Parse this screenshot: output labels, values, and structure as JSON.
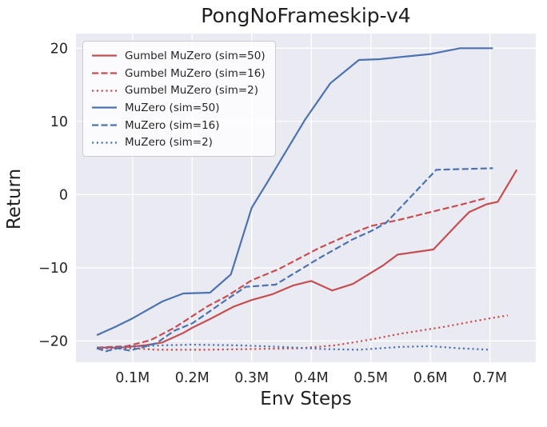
{
  "figure": {
    "title": "PongNoFrameskip-v4",
    "xlabel": "Env Steps",
    "ylabel": "Return"
  },
  "colors": {
    "red": "#c44e52",
    "blue": "#4c72b0",
    "plot_background": "#eaeaf2",
    "gridline": "#ffffff",
    "text": "#262626"
  },
  "chart_data": {
    "type": "line",
    "title": "PongNoFrameskip-v4",
    "xlabel": "Env Steps",
    "ylabel": "Return",
    "x_unit": "millions of env steps",
    "xlim": [
      0.005,
      0.777
    ],
    "ylim": [
      -22.9,
      22.0
    ],
    "grid": true,
    "legend_position": "upper left",
    "x_ticks": [
      {
        "value": 0.1,
        "label": "0.1M"
      },
      {
        "value": 0.2,
        "label": "0.2M"
      },
      {
        "value": 0.3,
        "label": "0.3M"
      },
      {
        "value": 0.4,
        "label": "0.4M"
      },
      {
        "value": 0.5,
        "label": "0.5M"
      },
      {
        "value": 0.6,
        "label": "0.6M"
      },
      {
        "value": 0.7,
        "label": "0.7M"
      }
    ],
    "y_ticks": [
      {
        "value": 20,
        "label": "20"
      },
      {
        "value": 10,
        "label": "10"
      },
      {
        "value": 0,
        "label": "0"
      },
      {
        "value": -10,
        "label": "−10"
      },
      {
        "value": -20,
        "label": "−20"
      }
    ],
    "series": [
      {
        "id": "gumbel-muzero-sim50",
        "name": "Gumbel MuZero (sim=50)",
        "color": "#c44e52",
        "style": "solid",
        "points": [
          [
            0.04,
            -20.9
          ],
          [
            0.08,
            -20.9
          ],
          [
            0.12,
            -20.6
          ],
          [
            0.15,
            -20.2
          ],
          [
            0.185,
            -18.9
          ],
          [
            0.2,
            -18.2
          ],
          [
            0.23,
            -17.0
          ],
          [
            0.27,
            -15.3
          ],
          [
            0.3,
            -14.4
          ],
          [
            0.335,
            -13.6
          ],
          [
            0.37,
            -12.4
          ],
          [
            0.4,
            -11.8
          ],
          [
            0.435,
            -13.1
          ],
          [
            0.47,
            -12.2
          ],
          [
            0.52,
            -9.7
          ],
          [
            0.545,
            -8.2
          ],
          [
            0.605,
            -7.5
          ],
          [
            0.648,
            -3.8
          ],
          [
            0.665,
            -2.4
          ],
          [
            0.695,
            -1.3
          ],
          [
            0.713,
            -1.0
          ],
          [
            0.745,
            3.4
          ]
        ]
      },
      {
        "id": "gumbel-muzero-sim16",
        "name": "Gumbel MuZero (sim=16)",
        "color": "#c44e52",
        "style": "dashed",
        "points": [
          [
            0.04,
            -20.9
          ],
          [
            0.09,
            -20.7
          ],
          [
            0.13,
            -19.9
          ],
          [
            0.17,
            -18.2
          ],
          [
            0.225,
            -15.3
          ],
          [
            0.26,
            -13.8
          ],
          [
            0.3,
            -11.7
          ],
          [
            0.345,
            -10.2
          ],
          [
            0.413,
            -7.3
          ],
          [
            0.46,
            -5.6
          ],
          [
            0.5,
            -4.3
          ],
          [
            0.55,
            -3.4
          ],
          [
            0.6,
            -2.4
          ],
          [
            0.65,
            -1.4
          ],
          [
            0.692,
            -0.5
          ]
        ]
      },
      {
        "id": "gumbel-muzero-sim2",
        "name": "Gumbel MuZero (sim=2)",
        "color": "#c44e52",
        "style": "dotted",
        "points": [
          [
            0.04,
            -21.0
          ],
          [
            0.1,
            -21.0
          ],
          [
            0.14,
            -21.2
          ],
          [
            0.22,
            -21.2
          ],
          [
            0.3,
            -21.1
          ],
          [
            0.38,
            -21.0
          ],
          [
            0.44,
            -20.6
          ],
          [
            0.5,
            -19.8
          ],
          [
            0.55,
            -19.0
          ],
          [
            0.62,
            -18.1
          ],
          [
            0.66,
            -17.5
          ],
          [
            0.7,
            -16.9
          ],
          [
            0.73,
            -16.5
          ]
        ]
      },
      {
        "id": "muzero-sim50",
        "name": "MuZero (sim=50)",
        "color": "#4c72b0",
        "style": "solid",
        "points": [
          [
            0.04,
            -19.2
          ],
          [
            0.07,
            -18.1
          ],
          [
            0.1,
            -16.9
          ],
          [
            0.15,
            -14.6
          ],
          [
            0.185,
            -13.5
          ],
          [
            0.23,
            -13.4
          ],
          [
            0.265,
            -10.9
          ],
          [
            0.3,
            -1.8
          ],
          [
            0.325,
            1.5
          ],
          [
            0.39,
            10.3
          ],
          [
            0.432,
            15.2
          ],
          [
            0.48,
            18.4
          ],
          [
            0.515,
            18.5
          ],
          [
            0.55,
            18.8
          ],
          [
            0.6,
            19.2
          ],
          [
            0.65,
            20.0
          ],
          [
            0.705,
            20.0
          ]
        ]
      },
      {
        "id": "muzero-sim16",
        "name": "MuZero (sim=16)",
        "color": "#4c72b0",
        "style": "dashed",
        "points": [
          [
            0.04,
            -21.0
          ],
          [
            0.055,
            -21.4
          ],
          [
            0.075,
            -21.0
          ],
          [
            0.095,
            -21.3
          ],
          [
            0.115,
            -20.9
          ],
          [
            0.14,
            -20.3
          ],
          [
            0.17,
            -18.6
          ],
          [
            0.2,
            -17.6
          ],
          [
            0.225,
            -16.2
          ],
          [
            0.255,
            -14.5
          ],
          [
            0.29,
            -12.6
          ],
          [
            0.34,
            -12.3
          ],
          [
            0.413,
            -8.7
          ],
          [
            0.47,
            -6.1
          ],
          [
            0.5,
            -5.0
          ],
          [
            0.525,
            -3.9
          ],
          [
            0.61,
            3.4
          ],
          [
            0.705,
            3.6
          ]
        ]
      },
      {
        "id": "muzero-sim2",
        "name": "MuZero (sim=2)",
        "color": "#4c72b0",
        "style": "dotted",
        "points": [
          [
            0.04,
            -20.9
          ],
          [
            0.09,
            -20.8
          ],
          [
            0.15,
            -20.6
          ],
          [
            0.2,
            -20.5
          ],
          [
            0.28,
            -20.6
          ],
          [
            0.35,
            -20.8
          ],
          [
            0.42,
            -21.1
          ],
          [
            0.48,
            -21.2
          ],
          [
            0.55,
            -20.8
          ],
          [
            0.6,
            -20.7
          ],
          [
            0.65,
            -21.0
          ],
          [
            0.7,
            -21.2
          ]
        ]
      }
    ]
  }
}
